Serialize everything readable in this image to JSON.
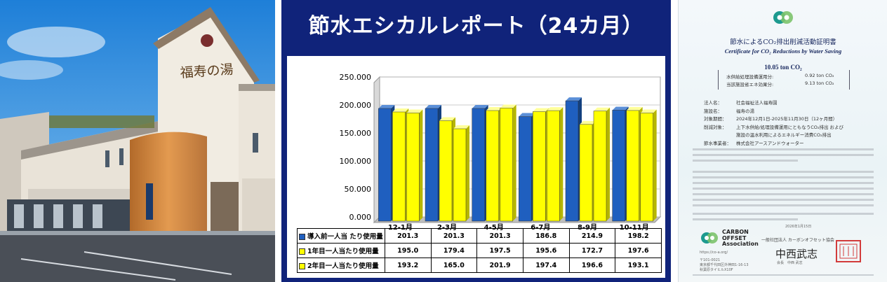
{
  "photo": {
    "building_sign": "福寿の湯"
  },
  "panel": {
    "title": "節水エシカルレポート（24カ月）"
  },
  "chart_data": {
    "type": "bar",
    "title": "節水エシカルレポート（24カ月）",
    "categories": [
      "12-1月",
      "2-3月",
      "4-5月",
      "6-7月",
      "8-9月",
      "10-11月"
    ],
    "series": [
      {
        "name": "導入前一人当 たり使用量",
        "color": "#1f5fbf",
        "values": [
          201.3,
          201.3,
          201.3,
          186.8,
          214.9,
          198.2
        ]
      },
      {
        "name": "1年目一人当たり使用量",
        "color": "#ffff00",
        "values": [
          195.0,
          179.4,
          197.5,
          195.6,
          172.7,
          197.6
        ]
      },
      {
        "name": "2年目一人当たり使用量",
        "color": "#ffff00",
        "values": [
          193.2,
          165.0,
          201.9,
          197.4,
          196.6,
          193.1
        ]
      }
    ],
    "yticks": [
      "250.000",
      "200.000",
      "150.000",
      "100.000",
      "50.000",
      "0.000"
    ],
    "ylim": [
      0,
      250
    ],
    "table": [
      [
        "201.3",
        "201.3",
        "201.3",
        "186.8",
        "214.9",
        "198.2"
      ],
      [
        "195.0",
        "179.4",
        "197.5",
        "195.6",
        "172.7",
        "197.6"
      ],
      [
        "193.2",
        "165.0",
        "201.9",
        "197.4",
        "196.6",
        "193.1"
      ]
    ]
  },
  "cert": {
    "title": "節水によるCO₂排出削減活動証明書",
    "subtitle": "Certificate for CO₂ Reductions by Water Saving",
    "total": "10.05 ton CO₂",
    "item1_label": "水供給処理設備運用分:",
    "item1_value": "0.92 ton CO₂",
    "item2_label": "当該施設省エネ効果分:",
    "item2_value": "9.13 ton CO₂",
    "rows": [
      {
        "k": "法人名：",
        "v": "社会福祉法人福寿園"
      },
      {
        "k": "施設名：",
        "v": "福寿の湯"
      },
      {
        "k": "対象期間：",
        "v": "2024年12月1日-2025年11月30日（12ヶ月間）"
      },
      {
        "k": "削減対象：",
        "v": "上下水供給/処理設備運用にともなうCO₂排出 および"
      },
      {
        "k": "",
        "v": "施設の温水利用によるエネルギー消費CO₂排出"
      },
      {
        "k": "節水事業者：",
        "v": "株式会社アースアンドウォーター"
      }
    ],
    "org_en_1": "CARBON",
    "org_en_2": "OFFSET",
    "org_en_3": "Association",
    "org_jp": "一般社団法人 カーボンオフセット協会",
    "date": "2026年1月15日",
    "signer": "会長　中西 武志",
    "signature": "中西武志",
    "url": "https://co-a.org/",
    "address_1": "〒101-0021",
    "address_2": "東京都千代田区外神田1-16-13",
    "address_3": "秋葉原タイヒルX10F"
  }
}
